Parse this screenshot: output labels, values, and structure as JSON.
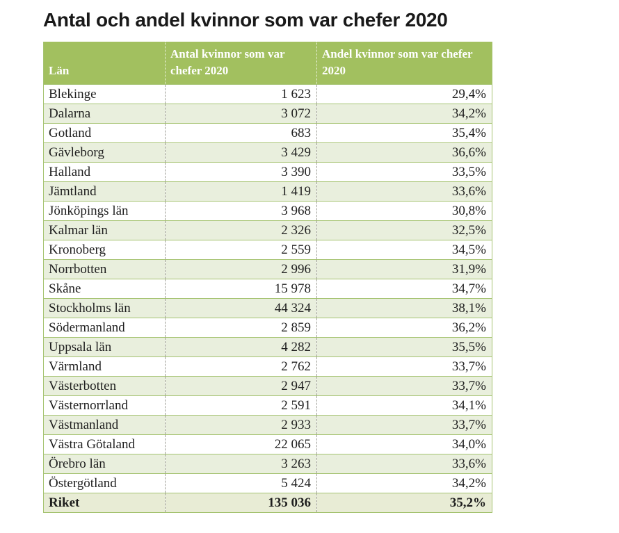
{
  "title": "Antal och andel kvinnor som var chefer 2020",
  "table": {
    "columns": [
      "Län",
      "Antal kvinnor som var chefer 2020",
      "Andel kvinnor som var chefer 2020"
    ],
    "rows": [
      {
        "lan": "Blekinge",
        "antal": "1 623",
        "andel": "29,4%"
      },
      {
        "lan": "Dalarna",
        "antal": "3 072",
        "andel": "34,2%"
      },
      {
        "lan": "Gotland",
        "antal": "683",
        "andel": "35,4%"
      },
      {
        "lan": "Gävleborg",
        "antal": "3 429",
        "andel": "36,6%"
      },
      {
        "lan": "Halland",
        "antal": "3 390",
        "andel": "33,5%"
      },
      {
        "lan": "Jämtland",
        "antal": "1 419",
        "andel": "33,6%"
      },
      {
        "lan": "Jönköpings län",
        "antal": "3 968",
        "andel": "30,8%"
      },
      {
        "lan": "Kalmar län",
        "antal": "2 326",
        "andel": "32,5%"
      },
      {
        "lan": "Kronoberg",
        "antal": "2 559",
        "andel": "34,5%"
      },
      {
        "lan": "Norrbotten",
        "antal": "2 996",
        "andel": "31,9%"
      },
      {
        "lan": "Skåne",
        "antal": "15 978",
        "andel": "34,7%"
      },
      {
        "lan": "Stockholms län",
        "antal": "44 324",
        "andel": "38,1%"
      },
      {
        "lan": "Södermanland",
        "antal": "2 859",
        "andel": "36,2%"
      },
      {
        "lan": "Uppsala län",
        "antal": "4 282",
        "andel": "35,5%"
      },
      {
        "lan": "Värmland",
        "antal": "2 762",
        "andel": "33,7%"
      },
      {
        "lan": "Västerbotten",
        "antal": "2 947",
        "andel": "33,7%"
      },
      {
        "lan": "Västernorrland",
        "antal": "2 591",
        "andel": "34,1%"
      },
      {
        "lan": "Västmanland",
        "antal": "2 933",
        "andel": "33,7%"
      },
      {
        "lan": "Västra Götaland",
        "antal": "22 065",
        "andel": "34,0%"
      },
      {
        "lan": "Örebro län",
        "antal": "3 263",
        "andel": "33,6%"
      },
      {
        "lan": "Östergötland",
        "antal": "5 424",
        "andel": "34,2%"
      }
    ],
    "footer": {
      "lan": "Riket",
      "antal": "135 036",
      "andel": "35,2%"
    }
  },
  "chart_data": {
    "type": "table",
    "title": "Antal och andel kvinnor som var chefer 2020",
    "columns": [
      "Län",
      "Antal kvinnor som var chefer 2020",
      "Andel kvinnor som var chefer 2020"
    ],
    "rows": [
      [
        "Blekinge",
        1623,
        29.4
      ],
      [
        "Dalarna",
        3072,
        34.2
      ],
      [
        "Gotland",
        683,
        35.4
      ],
      [
        "Gävleborg",
        3429,
        36.6
      ],
      [
        "Halland",
        3390,
        33.5
      ],
      [
        "Jämtland",
        1419,
        33.6
      ],
      [
        "Jönköpings län",
        3968,
        30.8
      ],
      [
        "Kalmar län",
        2326,
        32.5
      ],
      [
        "Kronoberg",
        2559,
        34.5
      ],
      [
        "Norrbotten",
        2996,
        31.9
      ],
      [
        "Skåne",
        15978,
        34.7
      ],
      [
        "Stockholms län",
        44324,
        38.1
      ],
      [
        "Södermanland",
        2859,
        36.2
      ],
      [
        "Uppsala län",
        4282,
        35.5
      ],
      [
        "Värmland",
        2762,
        33.7
      ],
      [
        "Västerbotten",
        2947,
        33.7
      ],
      [
        "Västernorrland",
        2591,
        34.1
      ],
      [
        "Västmanland",
        2933,
        33.7
      ],
      [
        "Västra Götaland",
        22065,
        34.0
      ],
      [
        "Örebro län",
        3263,
        33.6
      ],
      [
        "Östergötland",
        5424,
        34.2
      ],
      [
        "Riket",
        135036,
        35.2
      ]
    ],
    "notes": "Andel values shown as percent with comma decimal; antal uses thin-space thousands separator"
  },
  "colors": {
    "header_bg": "#a2c05f",
    "header_text": "#ffffff",
    "row_alt_bg": "#e9efdd",
    "footer_bg": "#e8ecd5",
    "grid_green": "#a5c371",
    "column_dash": "#9e9e96",
    "title_text": "#191919",
    "body_text": "#1e1e1e"
  }
}
